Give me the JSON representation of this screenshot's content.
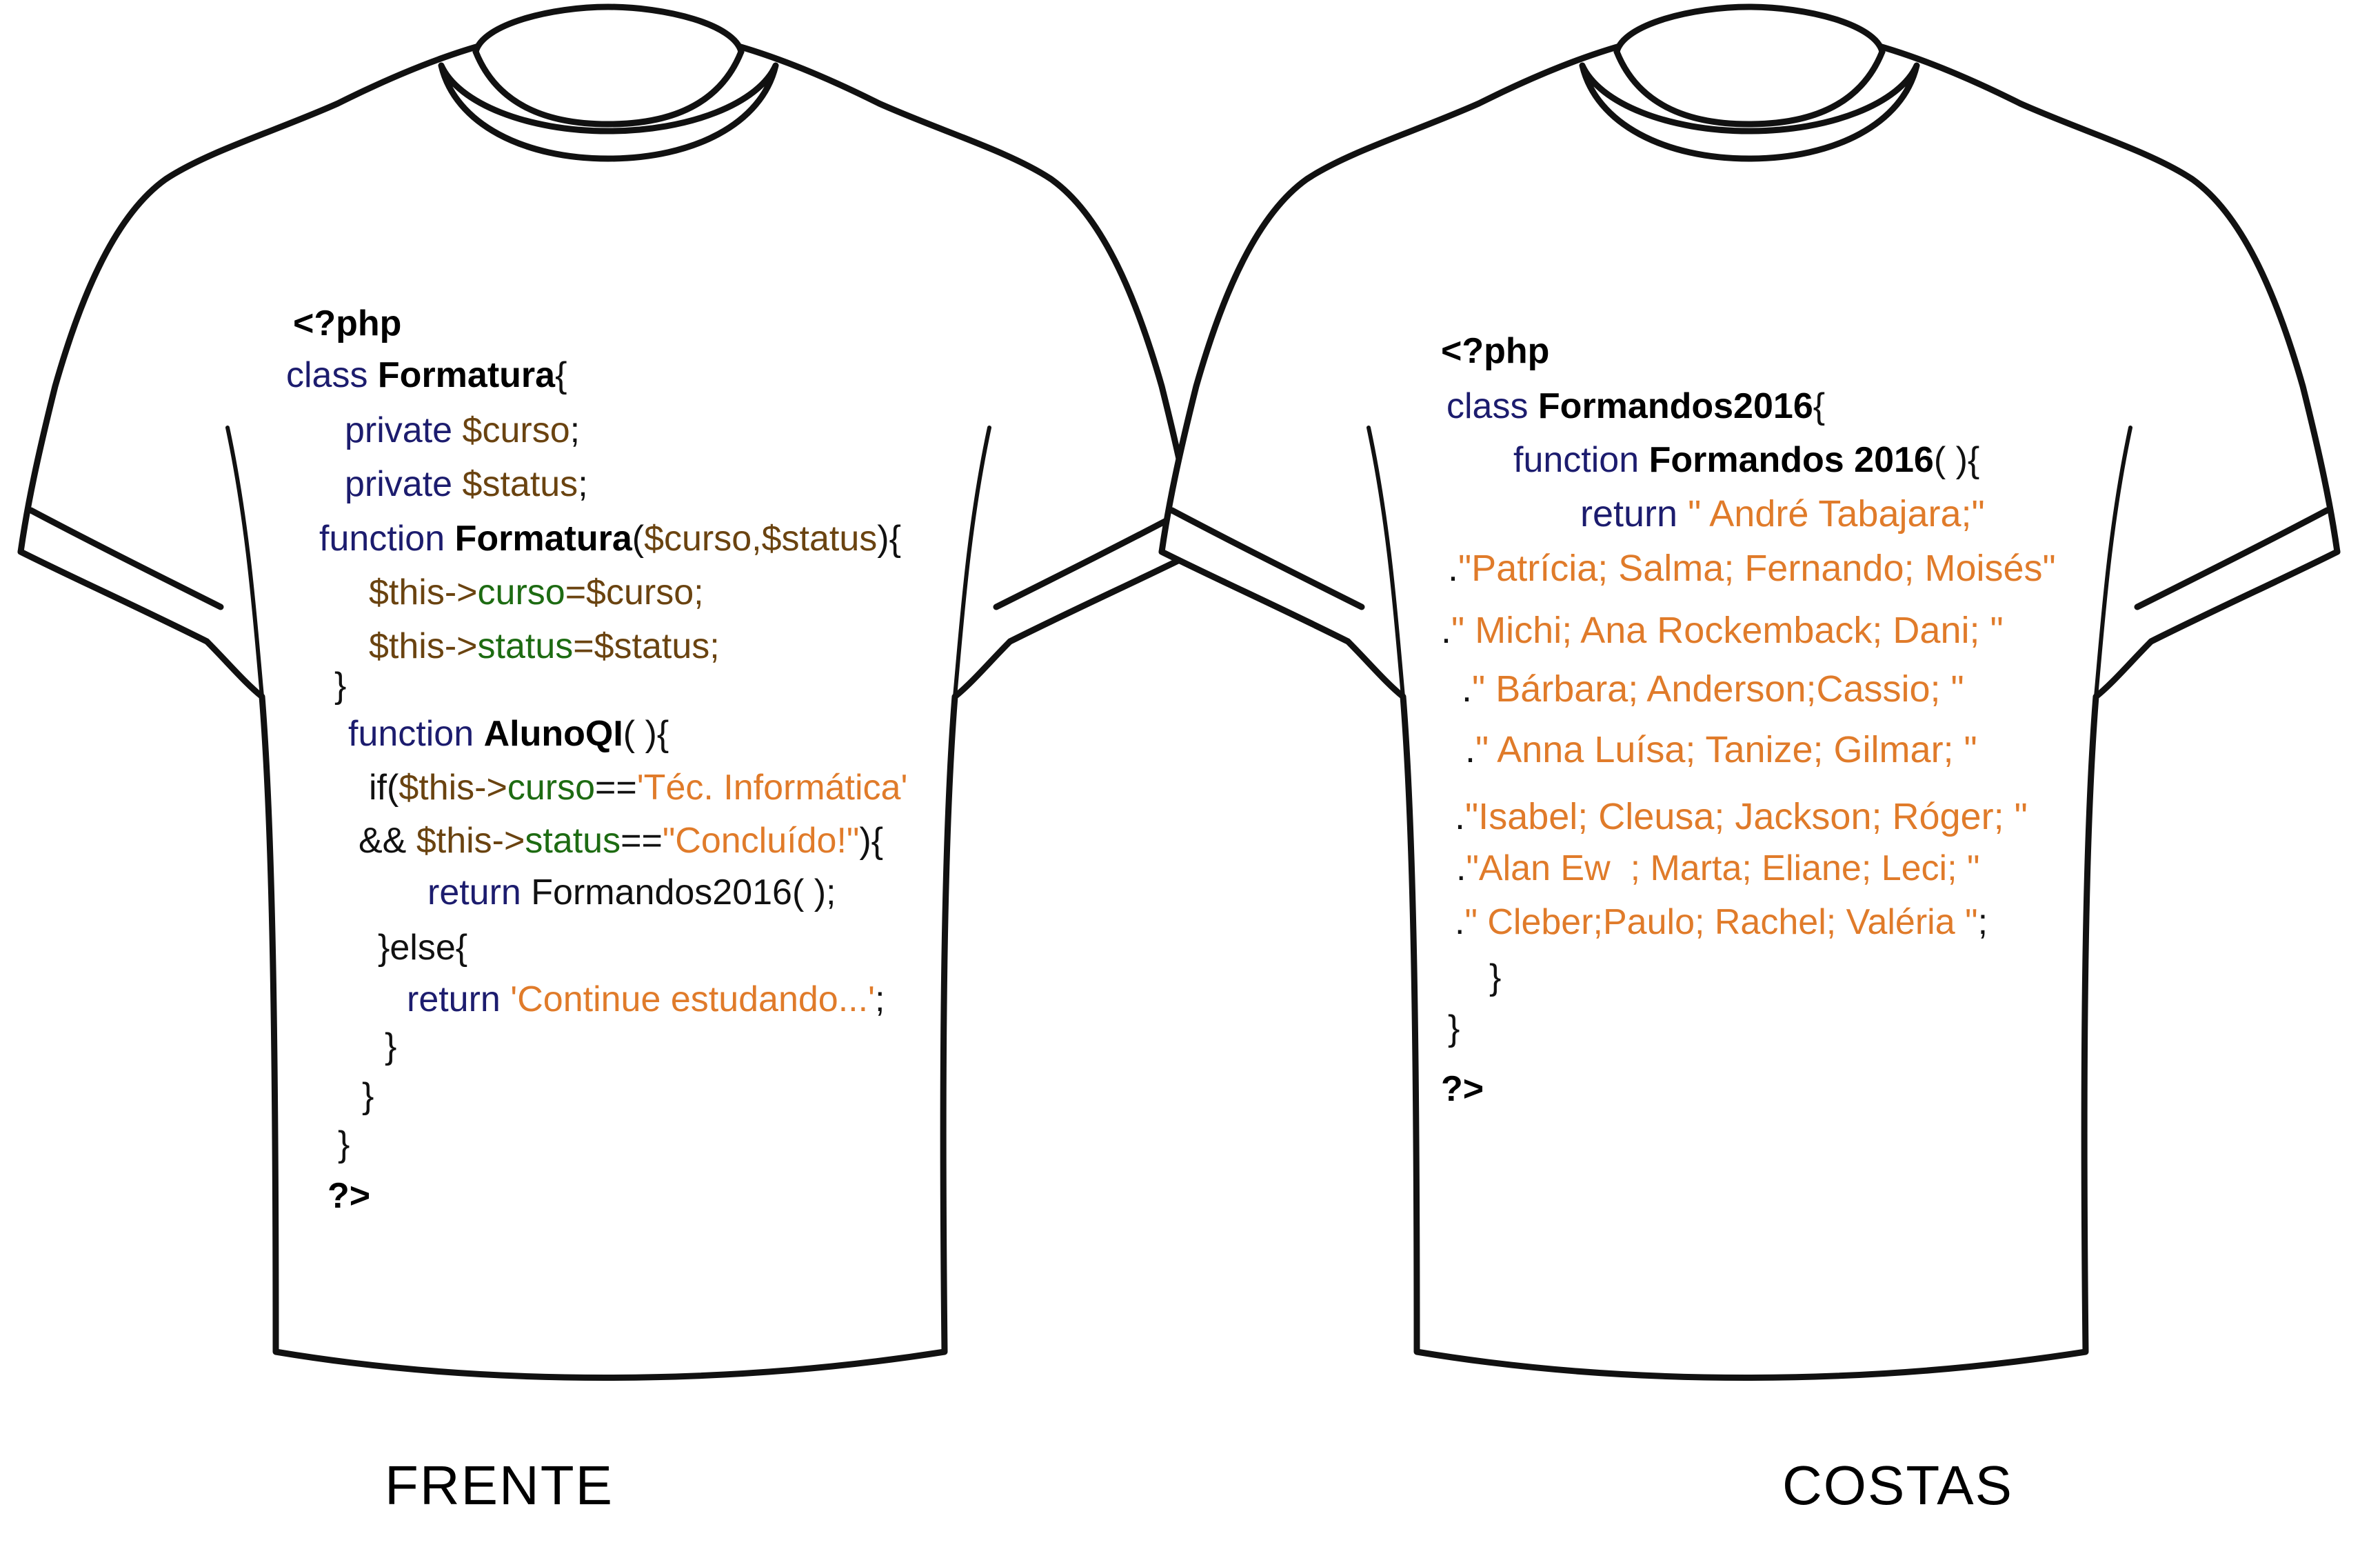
{
  "front": {
    "label": "FRENTE",
    "lines": [
      [
        {
          "t": "<?php",
          "c": "bold"
        }
      ],
      [
        {
          "t": "class ",
          "c": "kw"
        },
        {
          "t": "Formatura",
          "c": "bold"
        },
        {
          "t": "{",
          "c": "plain"
        }
      ],
      [
        {
          "t": "private ",
          "c": "kw"
        },
        {
          "t": "$curso",
          "c": "var"
        },
        {
          "t": ";",
          "c": "plain"
        }
      ],
      [
        {
          "t": "private ",
          "c": "kw"
        },
        {
          "t": "$status",
          "c": "var"
        },
        {
          "t": ";",
          "c": "plain"
        }
      ],
      [
        {
          "t": "function ",
          "c": "kw"
        },
        {
          "t": "Formatura",
          "c": "bold"
        },
        {
          "t": "(",
          "c": "plain"
        },
        {
          "t": "$curso,$status",
          "c": "var"
        },
        {
          "t": "){",
          "c": "plain"
        }
      ],
      [
        {
          "t": "$this->",
          "c": "var"
        },
        {
          "t": "curso",
          "c": "green"
        },
        {
          "t": "=$curso;",
          "c": "var"
        }
      ],
      [
        {
          "t": "$this->",
          "c": "var"
        },
        {
          "t": "status",
          "c": "green"
        },
        {
          "t": "=$status;",
          "c": "var"
        }
      ],
      [
        {
          "t": "}",
          "c": "plain"
        }
      ],
      [
        {
          "t": "function ",
          "c": "kw"
        },
        {
          "t": "AlunoQI",
          "c": "bold"
        },
        {
          "t": "( ){",
          "c": "plain"
        }
      ],
      [
        {
          "t": "if(",
          "c": "plain"
        },
        {
          "t": "$this->",
          "c": "var"
        },
        {
          "t": "curso",
          "c": "green"
        },
        {
          "t": "==",
          "c": "plain"
        },
        {
          "t": "'Téc. Informática'",
          "c": "str"
        }
      ],
      [
        {
          "t": "&& ",
          "c": "plain"
        },
        {
          "t": "$this->",
          "c": "var"
        },
        {
          "t": "status",
          "c": "green"
        },
        {
          "t": "==",
          "c": "plain"
        },
        {
          "t": "\"Concluído!\"",
          "c": "str"
        },
        {
          "t": "){",
          "c": "plain"
        }
      ],
      [
        {
          "t": "return ",
          "c": "kw"
        },
        {
          "t": "Formandos2016( );",
          "c": "plain"
        }
      ],
      [
        {
          "t": "}else{",
          "c": "plain"
        }
      ],
      [
        {
          "t": "return ",
          "c": "kw"
        },
        {
          "t": "'Continue estudando...'",
          "c": "str"
        },
        {
          "t": ";",
          "c": "plain"
        }
      ],
      [
        {
          "t": "}",
          "c": "plain"
        }
      ],
      [
        {
          "t": "}",
          "c": "plain"
        }
      ],
      [
        {
          "t": "}",
          "c": "plain"
        }
      ],
      [
        {
          "t": "?>",
          "c": "bold"
        }
      ]
    ]
  },
  "back": {
    "label": "COSTAS",
    "lines": [
      [
        {
          "t": "<?php",
          "c": "bold"
        }
      ],
      [
        {
          "t": "class ",
          "c": "kw"
        },
        {
          "t": "Formandos2016",
          "c": "bold"
        },
        {
          "t": "{",
          "c": "plain"
        }
      ],
      [
        {
          "t": "function ",
          "c": "kw"
        },
        {
          "t": "Formandos 2016",
          "c": "bold"
        },
        {
          "t": "( ){",
          "c": "plain"
        }
      ],
      [
        {
          "t": "return ",
          "c": "kw"
        },
        {
          "t": "\" André Tabajara;\"",
          "c": "str"
        }
      ],
      [
        {
          "t": ".",
          "c": "plain"
        },
        {
          "t": "\"Patrícia; Salma; Fernando; Moisés\"",
          "c": "str"
        }
      ],
      [
        {
          "t": ".",
          "c": "plain"
        },
        {
          "t": "\" Michi; Ana Rockemback; Dani; \"",
          "c": "str"
        }
      ],
      [
        {
          "t": ".",
          "c": "plain"
        },
        {
          "t": "\" Bárbara; Anderson;Cassio; \"",
          "c": "str"
        }
      ],
      [
        {
          "t": ".",
          "c": "plain"
        },
        {
          "t": "\" Anna Luísa; Tanize; Gilmar; \"",
          "c": "str"
        }
      ],
      [
        {
          "t": ".",
          "c": "plain"
        },
        {
          "t": "\"Isabel; Cleusa; Jackson; Róger; \"",
          "c": "str"
        }
      ],
      [
        {
          "t": ".",
          "c": "plain"
        },
        {
          "t": "\"Alan Ew  ; Marta; Eliane; Leci; \"",
          "c": "str"
        }
      ],
      [
        {
          "t": ".",
          "c": "plain"
        },
        {
          "t": "\" Cleber;Paulo; Rachel; Valéria \"",
          "c": "str"
        },
        {
          "t": ";",
          "c": "plain"
        }
      ],
      [
        {
          "t": "}",
          "c": "plain"
        }
      ],
      [
        {
          "t": "}",
          "c": "plain"
        }
      ],
      [
        {
          "t": "?>",
          "c": "bold"
        }
      ]
    ]
  }
}
